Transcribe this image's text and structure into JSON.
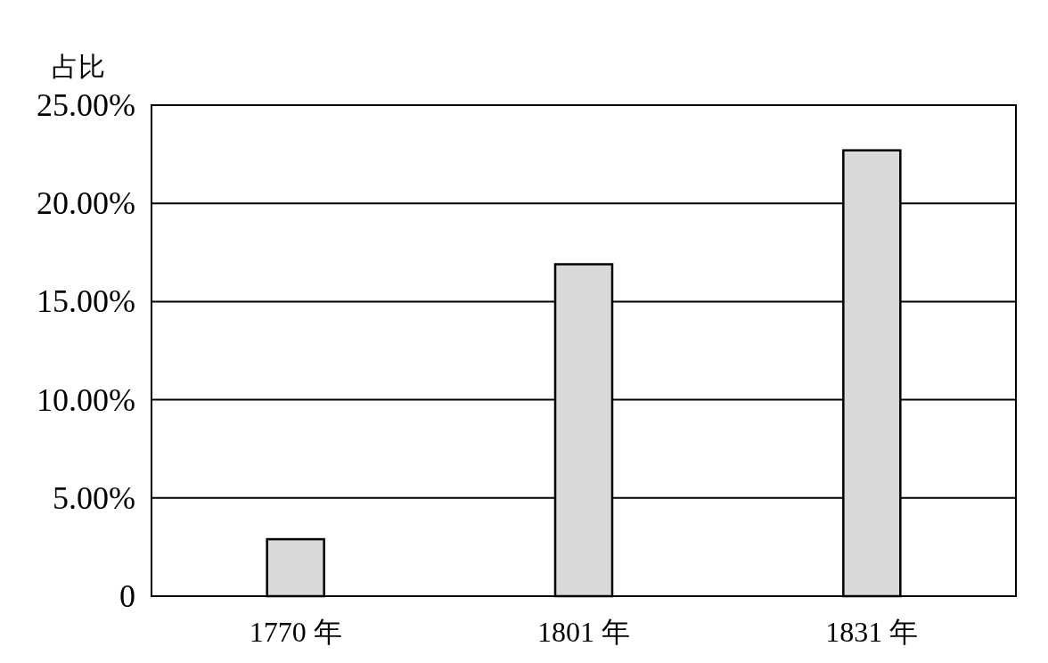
{
  "chart_data": {
    "type": "bar",
    "ylabel": "占比",
    "categories": [
      "1770 年",
      "1801 年",
      "1831 年"
    ],
    "values": [
      2.9,
      16.9,
      22.7
    ],
    "color": "#d9d9d9",
    "ylim": [
      0,
      25
    ],
    "yticks": [
      0,
      {
        "value": 5,
        "label": "5.00%"
      },
      {
        "value": 10,
        "label": "10.00%"
      },
      {
        "value": 15,
        "label": "15.00%"
      },
      {
        "value": 20,
        "label": "20.00%"
      },
      {
        "value": 25,
        "label": "25.00%"
      }
    ],
    "grid": "y"
  }
}
